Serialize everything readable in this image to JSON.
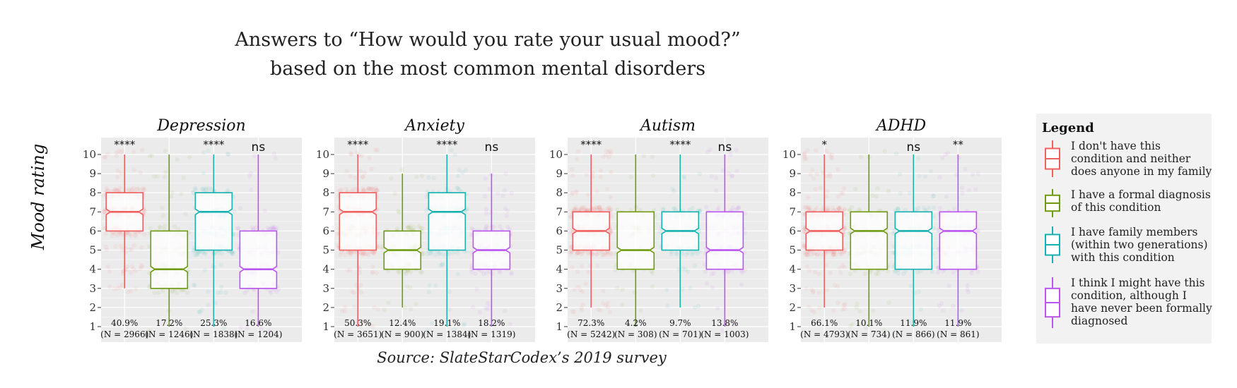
{
  "title_line1": "Answers to “How would you rate your usual mood?”",
  "title_line2": "based on the most common mental disorders",
  "source": "Source: SlateStarCodex’s 2019 survey",
  "colors": {
    "red": "#f0605f",
    "green": "#6f9b12",
    "teal": "#18b1b1",
    "purple": "#bb55f0",
    "panel": "#ebebeb",
    "grid": "#ffffff"
  },
  "chart_data": {
    "type": "box",
    "ylabel": "Mood rating",
    "ylim": [
      1,
      10
    ],
    "yticks": [
      1,
      2,
      3,
      4,
      5,
      6,
      7,
      8,
      9,
      10
    ],
    "legend": {
      "title": "Legend",
      "position": "right",
      "entries": [
        {
          "color": "red",
          "lines": [
            "I don't have this",
            "condition and neither",
            "does anyone in my family"
          ]
        },
        {
          "color": "green",
          "lines": [
            "I have a formal diagnosis",
            "of this condition"
          ]
        },
        {
          "color": "teal",
          "lines": [
            "I have family members",
            "(within two generations)",
            "with this condition"
          ]
        },
        {
          "color": "purple",
          "lines": [
            "I think I might have this",
            "condition, although I",
            "have never been formally",
            "diagnosed"
          ]
        }
      ]
    },
    "panels": [
      {
        "name": "Depression",
        "groups": [
          {
            "color": "red",
            "min": 3,
            "q1": 6,
            "median": 7,
            "q3": 8,
            "max": 10,
            "sig": "****",
            "pct": "40.9%",
            "n": "(N = 2966)"
          },
          {
            "color": "green",
            "min": 1,
            "q1": 3,
            "median": 4,
            "q3": 6,
            "max": 10,
            "sig": "",
            "pct": "17.2%",
            "n": "(N = 1246)"
          },
          {
            "color": "teal",
            "min": 1,
            "q1": 5,
            "median": 7,
            "q3": 8,
            "max": 10,
            "sig": "****",
            "pct": "25.3%",
            "n": "(N = 1838)"
          },
          {
            "color": "purple",
            "min": 1,
            "q1": 3,
            "median": 4,
            "q3": 6,
            "max": 10,
            "sig": "ns",
            "pct": "16.6%",
            "n": "(N = 1204)"
          }
        ]
      },
      {
        "name": "Anxiety",
        "groups": [
          {
            "color": "red",
            "min": 1,
            "q1": 5,
            "median": 7,
            "q3": 8,
            "max": 10,
            "sig": "****",
            "pct": "50.3%",
            "n": "(N = 3651)"
          },
          {
            "color": "green",
            "min": 2,
            "q1": 4,
            "median": 5,
            "q3": 6,
            "max": 9,
            "sig": "",
            "pct": "12.4%",
            "n": "(N = 900)"
          },
          {
            "color": "teal",
            "min": 1,
            "q1": 5,
            "median": 7,
            "q3": 8,
            "max": 10,
            "sig": "****",
            "pct": "19.1%",
            "n": "(N = 1384)"
          },
          {
            "color": "purple",
            "min": 1,
            "q1": 4,
            "median": 5,
            "q3": 6,
            "max": 9,
            "sig": "ns",
            "pct": "18.2%",
            "n": "(N = 1319)"
          }
        ]
      },
      {
        "name": "Autism",
        "groups": [
          {
            "color": "red",
            "min": 2,
            "q1": 5,
            "median": 6,
            "q3": 7,
            "max": 10,
            "sig": "****",
            "pct": "72.3%",
            "n": "(N = 5242)"
          },
          {
            "color": "green",
            "min": 1,
            "q1": 4,
            "median": 5,
            "q3": 7,
            "max": 10,
            "sig": "",
            "pct": "4.2%",
            "n": "(N = 308)"
          },
          {
            "color": "teal",
            "min": 2,
            "q1": 5,
            "median": 6,
            "q3": 7,
            "max": 10,
            "sig": "****",
            "pct": "9.7%",
            "n": "(N = 701)"
          },
          {
            "color": "purple",
            "min": 1,
            "q1": 4,
            "median": 5,
            "q3": 7,
            "max": 10,
            "sig": "ns",
            "pct": "13.8%",
            "n": "(N = 1003)"
          }
        ]
      },
      {
        "name": "ADHD",
        "groups": [
          {
            "color": "red",
            "min": 2,
            "q1": 5,
            "median": 6,
            "q3": 7,
            "max": 10,
            "sig": "*",
            "pct": "66.1%",
            "n": "(N = 4793)"
          },
          {
            "color": "green",
            "min": 1,
            "q1": 4,
            "median": 6,
            "q3": 7,
            "max": 10,
            "sig": "",
            "pct": "10.1%",
            "n": "(N = 734)"
          },
          {
            "color": "teal",
            "min": 1,
            "q1": 4,
            "median": 6,
            "q3": 7,
            "max": 10,
            "sig": "ns",
            "pct": "11.9%",
            "n": "(N = 866)"
          },
          {
            "color": "purple",
            "min": 1,
            "q1": 4,
            "median": 6,
            "q3": 7,
            "max": 10,
            "sig": "**",
            "pct": "11.9%",
            "n": "(N = 861)"
          }
        ]
      }
    ]
  }
}
